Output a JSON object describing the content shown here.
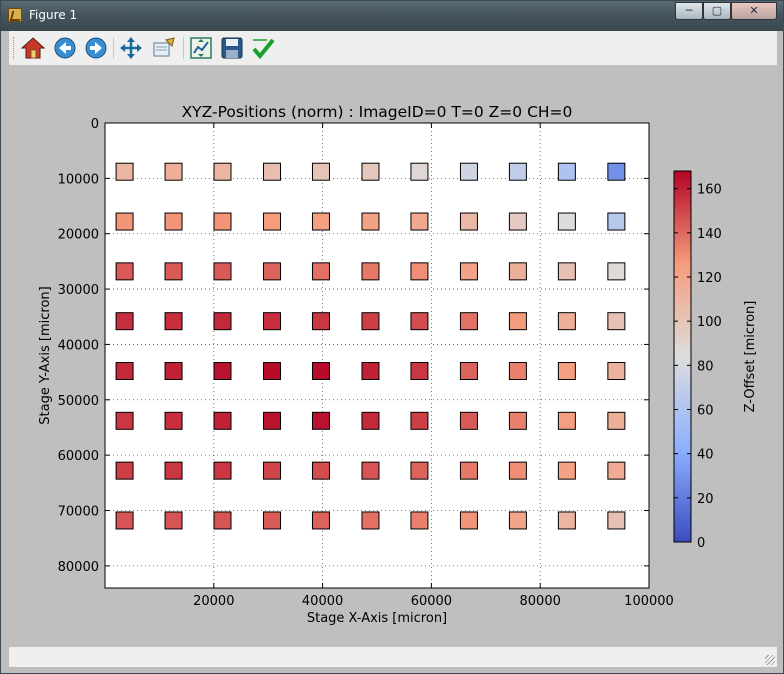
{
  "window": {
    "title": "Figure 1"
  },
  "toolbar": {
    "buttons": [
      {
        "name": "home-button",
        "icon": "home-icon"
      },
      {
        "name": "back-button",
        "icon": "arrow-left-icon"
      },
      {
        "name": "forward-button",
        "icon": "arrow-right-icon"
      },
      {
        "name": "pan-button",
        "icon": "move-arrows-icon"
      },
      {
        "name": "zoom-button",
        "icon": "zoom-rect-icon"
      },
      {
        "name": "subplots-button",
        "icon": "subplots-icon"
      },
      {
        "name": "save-button",
        "icon": "floppy-icon"
      },
      {
        "name": "edit-button",
        "icon": "checkmark-icon"
      }
    ]
  },
  "chart_data": {
    "type": "heatmap",
    "title": "XYZ-Positions (norm) : ImageID=0 T=0 Z=0 CH=0",
    "xlabel": "Stage X-Axis [micron]",
    "ylabel": "Stage Y-Axis [micron]",
    "xlim": [
      0,
      100000
    ],
    "ylim": [
      84000,
      0
    ],
    "y_inverted": true,
    "xticks": [
      20000,
      40000,
      60000,
      80000,
      100000
    ],
    "xtick_labels": [
      "20000",
      "40000",
      "60000",
      "80000",
      "100000"
    ],
    "yticks": [
      0,
      10000,
      20000,
      30000,
      40000,
      50000,
      60000,
      70000,
      80000
    ],
    "ytick_labels": [
      "0",
      "10000",
      "20000",
      "30000",
      "40000",
      "50000",
      "60000",
      "70000",
      "80000"
    ],
    "grid": true,
    "colormap": "coolwarm",
    "x": [
      3600,
      12600,
      21600,
      30700,
      39700,
      48800,
      57800,
      66900,
      75900,
      84900,
      94000
    ],
    "y": [
      8800,
      17800,
      26800,
      35800,
      44800,
      53800,
      62800,
      71800
    ],
    "z": [
      [
        110,
        114,
        110,
        104,
        101,
        98,
        88,
        76,
        68,
        60,
        28
      ],
      [
        128,
        128,
        128,
        126,
        124,
        122,
        118,
        108,
        96,
        84,
        64
      ],
      [
        144,
        144,
        144,
        142,
        138,
        136,
        130,
        122,
        114,
        102,
        86
      ],
      [
        156,
        156,
        158,
        156,
        154,
        152,
        148,
        138,
        126,
        114,
        102
      ],
      [
        158,
        160,
        164,
        166,
        166,
        160,
        154,
        142,
        134,
        124,
        112
      ],
      [
        154,
        156,
        160,
        164,
        164,
        158,
        152,
        144,
        134,
        124,
        114
      ],
      [
        152,
        154,
        154,
        150,
        148,
        146,
        142,
        136,
        130,
        122,
        116
      ],
      [
        146,
        146,
        146,
        144,
        142,
        138,
        134,
        128,
        120,
        110,
        102
      ]
    ],
    "colorbar": {
      "label": "Z-Offset [micron]",
      "range": [
        0,
        168
      ],
      "ticks": [
        0,
        20,
        40,
        60,
        80,
        100,
        120,
        140,
        160
      ],
      "tick_labels": [
        "0",
        "20",
        "40",
        "60",
        "80",
        "100",
        "120",
        "140",
        "160"
      ]
    }
  }
}
